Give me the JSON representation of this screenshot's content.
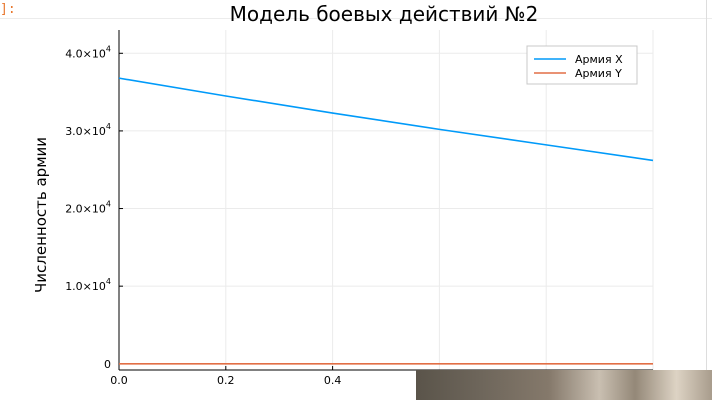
{
  "prompt": "]:",
  "chart_data": {
    "type": "line",
    "title": "Модель боевых действий №2",
    "xlabel": "",
    "ylabel": "Численность армии",
    "xlim": [
      0,
      1.0
    ],
    "ylim": [
      -800,
      43000
    ],
    "x_ticks": [
      0.0,
      0.2,
      0.4
    ],
    "x_tick_labels": [
      "0.0",
      "0.2",
      "0.4"
    ],
    "y_ticks": [
      {
        "value": 0,
        "base": "0",
        "exp": ""
      },
      {
        "value": 10000,
        "base": "1.0×10",
        "exp": "4"
      },
      {
        "value": 20000,
        "base": "2.0×10",
        "exp": "4"
      },
      {
        "value": 30000,
        "base": "3.0×10",
        "exp": "4"
      },
      {
        "value": 40000,
        "base": "4.0×10",
        "exp": "4"
      }
    ],
    "grid": true,
    "legend_position": "top-right",
    "series": [
      {
        "name": "Армия X",
        "color": "#009af9",
        "x": [
          0.0,
          0.2,
          0.4,
          0.6,
          0.8,
          1.0
        ],
        "y": [
          36800,
          34500,
          32300,
          30200,
          28200,
          26200
        ]
      },
      {
        "name": "Армия Y",
        "color": "#e26f46",
        "x": [
          0.0,
          0.2,
          0.4,
          0.6,
          0.8,
          1.0
        ],
        "y": [
          0,
          0,
          0,
          0,
          0,
          0
        ]
      }
    ]
  }
}
